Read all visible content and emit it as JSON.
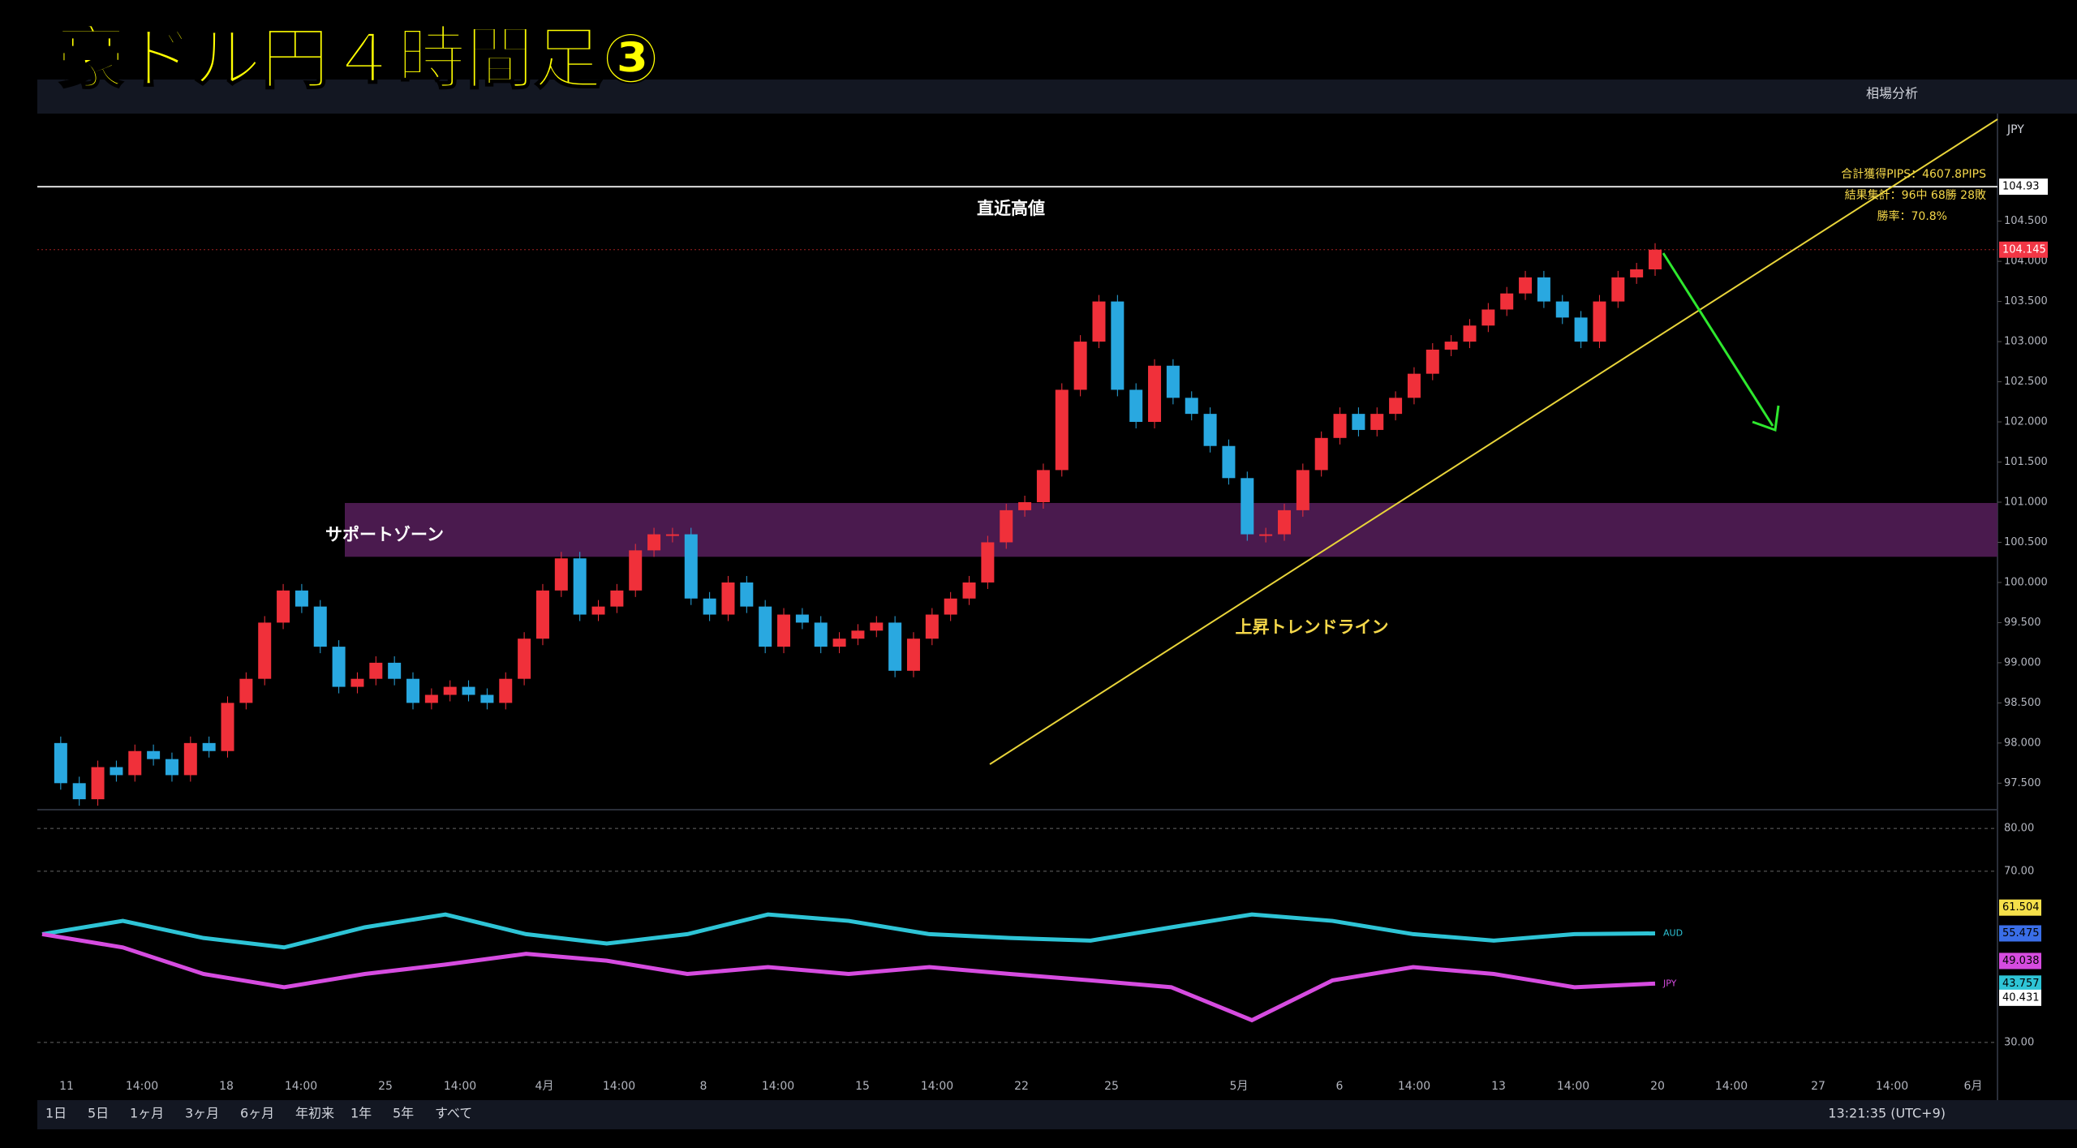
{
  "header": {
    "title": "豪ドル円４時間足③",
    "tool": "相場分析",
    "currency": "JPY"
  },
  "chart_data": {
    "type": "candlestick",
    "closes": [
      98.0,
      97.5,
      97.3,
      97.7,
      97.6,
      97.9,
      97.8,
      97.6,
      98.0,
      97.9,
      98.5,
      98.8,
      99.5,
      99.9,
      99.7,
      99.2,
      98.7,
      98.8,
      99.0,
      98.8,
      98.5,
      98.6,
      98.7,
      98.6,
      98.5,
      98.8,
      99.3,
      99.9,
      100.3,
      99.6,
      99.7,
      99.9,
      100.4,
      100.6,
      100.6,
      99.8,
      99.6,
      100.0,
      99.7,
      99.2,
      99.6,
      99.5,
      99.2,
      99.3,
      99.4,
      99.5,
      98.9,
      99.3,
      99.6,
      99.8,
      100.0,
      100.5,
      100.9,
      101.0,
      101.4,
      102.4,
      103.0,
      103.5,
      102.4,
      102.0,
      102.7,
      102.3,
      102.1,
      101.7,
      101.3,
      100.6,
      100.6,
      100.9,
      101.4,
      101.8,
      102.1,
      101.9,
      102.1,
      102.3,
      102.6,
      102.9,
      103.0,
      103.2,
      103.4,
      103.6,
      103.8,
      103.5,
      103.3,
      103.0,
      103.5,
      103.8,
      103.9,
      104.145
    ],
    "up_color": "#f0303a",
    "down_color": "#29a8e0",
    "ylim": [
      97.19,
      105.8
    ],
    "yticks": [
      {
        "value": 97.5,
        "label": "97.500"
      },
      {
        "value": 98,
        "label": "98.000"
      },
      {
        "value": 98.5,
        "label": "98.500"
      },
      {
        "value": 99,
        "label": "99.000"
      },
      {
        "value": 99.5,
        "label": "99.500"
      },
      {
        "value": 100,
        "label": "100.000"
      },
      {
        "value": 100.5,
        "label": "100.500"
      },
      {
        "value": 101,
        "label": "101.000"
      },
      {
        "value": 101.5,
        "label": "101.500"
      },
      {
        "value": 102,
        "label": "102.000"
      },
      {
        "value": 102.5,
        "label": "102.500"
      },
      {
        "value": 103,
        "label": "103.000"
      },
      {
        "value": 103.5,
        "label": "103.500"
      },
      {
        "value": 104,
        "label": "104.000"
      },
      {
        "value": 104.5,
        "label": "104.500"
      }
    ],
    "recent_high": {
      "value": 104.93,
      "label": "104.93"
    },
    "current_price": {
      "value": 104.145,
      "label": "104.145"
    },
    "support_zone": [
      100.32,
      100.99
    ],
    "annotations": {
      "high": "直近高値",
      "zone": "サポートゾーン",
      "trend": "上昇トレンドライン"
    },
    "stats": [
      "合計獲得PIPS：4607.8PIPS",
      "結果集計：96中 68勝 28敗",
      "勝率：70.8%"
    ],
    "x_labels": [
      "11",
      "14:00",
      "18",
      "14:00",
      "25",
      "14:00",
      "4月",
      "14:00",
      "8",
      "14:00",
      "15",
      "14:00",
      "22",
      "25",
      "5月",
      "6",
      "14:00",
      "13",
      "14:00",
      "20",
      "14:00",
      "27",
      "14:00",
      "6月"
    ]
  },
  "oscillator": {
    "type": "line",
    "ylim": [
      26,
      84
    ],
    "yticks": [
      {
        "value": 80,
        "label": "80.00"
      },
      {
        "value": 70,
        "label": "70.00"
      },
      {
        "value": 30,
        "label": "30.00"
      }
    ],
    "series": [
      {
        "name": "AUD",
        "color": "#2ec4d6",
        "values": [
          55.3,
          58.4,
          54.4,
          52.2,
          56.9,
          59.9,
          55.3,
          53.1,
          55.3,
          59.9,
          58.4,
          55.3,
          54.4,
          53.8,
          56.9,
          59.9,
          58.4,
          55.3,
          53.8,
          55.3,
          55.475
        ]
      },
      {
        "name": "JPY",
        "color": "#d64ce0",
        "values": [
          55.3,
          52.2,
          46.0,
          42.9,
          46.0,
          48.2,
          50.7,
          49.1,
          46.0,
          47.6,
          46.0,
          47.6,
          46.0,
          44.5,
          42.9,
          35.2,
          44.5,
          47.6,
          46.0,
          42.9,
          43.757
        ]
      }
    ],
    "axis_labels": [
      {
        "value": 61.504,
        "color": "#f5e04a"
      },
      {
        "value": 55.475,
        "color": "#3a6ee8"
      },
      {
        "value": 49.038,
        "color": "#d64ce0"
      },
      {
        "value": 43.757,
        "color": "#2ec4d6"
      },
      {
        "value": 40.431,
        "color": "#ffffff"
      }
    ]
  },
  "bottom_bar": {
    "ranges": [
      "1日",
      "5日",
      "1ヶ月",
      "3ヶ月",
      "6ヶ月",
      "年初来",
      "1年",
      "5年",
      "すべて"
    ],
    "clock": "13:21:35 (UTC+9)"
  }
}
